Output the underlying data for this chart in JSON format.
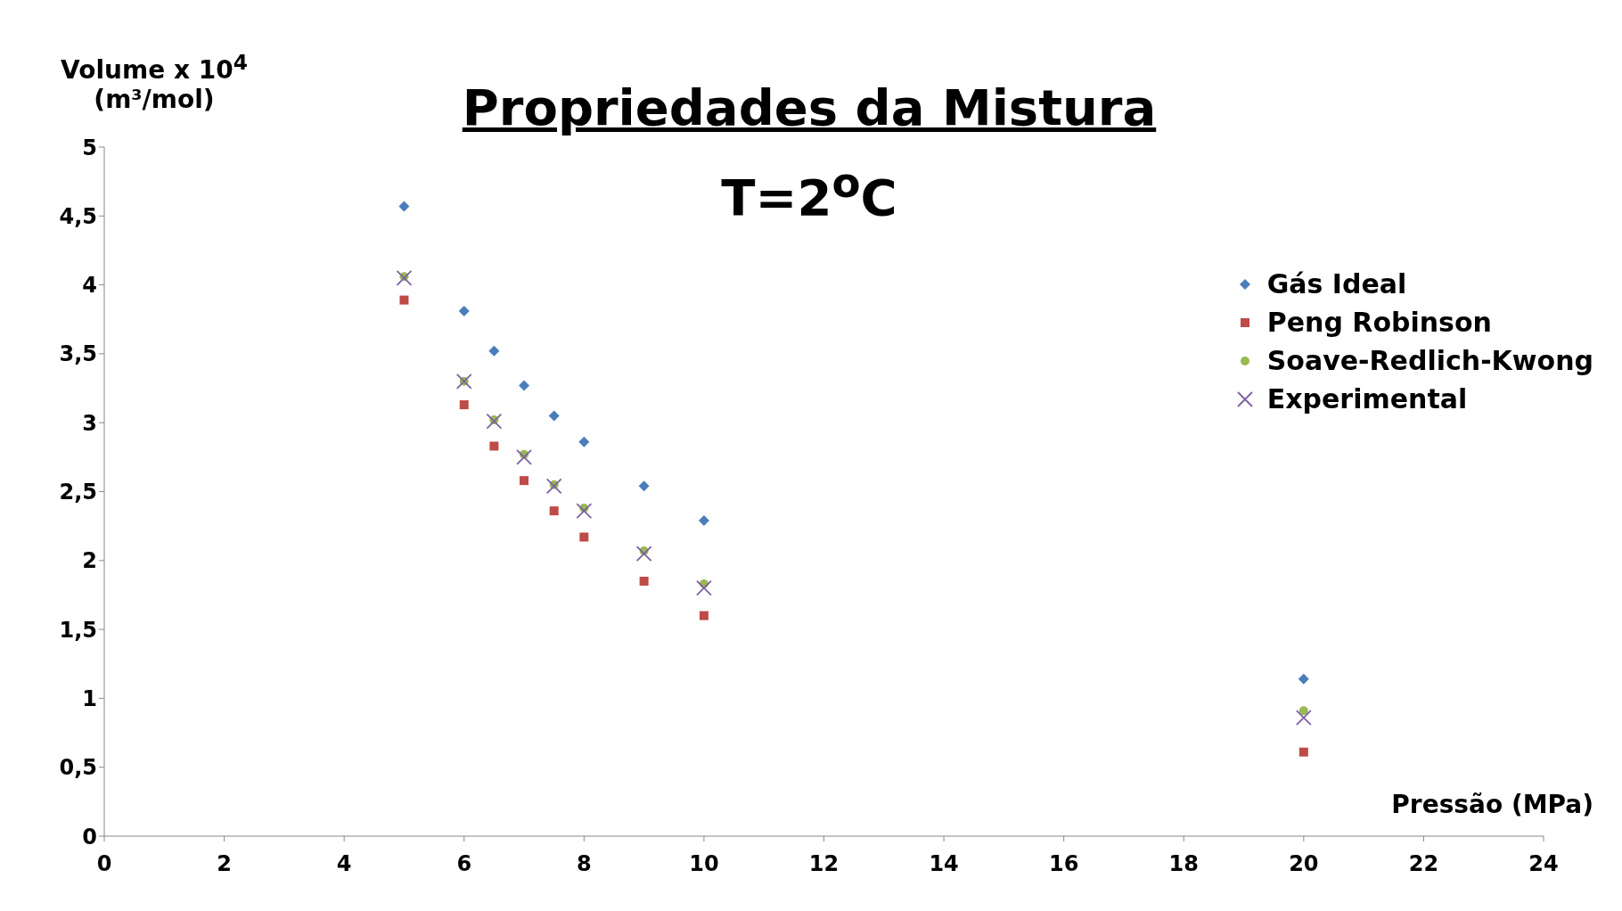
{
  "chart_data": {
    "type": "scatter",
    "title": "Propriedades da Mistura",
    "subtitle": "T=2$^{o}$C",
    "xlabel": "Pressão (MPa)",
    "ylabel": "Volume x 10$^{4}$ (m³/mol)",
    "x": [
      5,
      6,
      6.5,
      7,
      7.5,
      8,
      9,
      10,
      20
    ],
    "series": [
      {
        "name": "Gás Ideal",
        "color": "#4a7ebb",
        "marker": "diamond",
        "values": [
          4.57,
          3.81,
          3.52,
          3.27,
          3.05,
          2.86,
          2.54,
          2.29,
          1.14
        ]
      },
      {
        "name": "Peng Robinson",
        "color": "#be4b48",
        "marker": "square",
        "values": [
          3.89,
          3.13,
          2.83,
          2.58,
          2.36,
          2.17,
          1.85,
          1.6,
          0.61
        ]
      },
      {
        "name": "Soave-Redlich-Kwong",
        "color": "#98b954",
        "marker": "circle",
        "values": [
          4.06,
          3.3,
          3.02,
          2.77,
          2.55,
          2.38,
          2.07,
          1.83,
          0.91
        ]
      },
      {
        "name": "Experimental",
        "color": "#7d60a0",
        "marker": "cross",
        "values": [
          4.05,
          3.3,
          3.01,
          2.75,
          2.54,
          2.36,
          2.05,
          1.8,
          0.86
        ]
      }
    ],
    "xlim": [
      0,
      24
    ],
    "xticks": [
      0,
      2,
      4,
      6,
      8,
      10,
      12,
      14,
      16,
      18,
      20,
      22,
      24
    ],
    "ylim": [
      0,
      5
    ],
    "yticks": [
      0,
      {
        "value": 0.5,
        "label": "0,5"
      },
      1,
      {
        "value": 1.5,
        "label": "1,5"
      },
      2,
      {
        "value": 2.5,
        "label": "2,5"
      },
      3,
      {
        "value": 3.5,
        "label": "3,5"
      },
      4,
      {
        "value": 4.5,
        "label": "4,5"
      },
      5
    ],
    "grid": false,
    "legend": "right"
  }
}
